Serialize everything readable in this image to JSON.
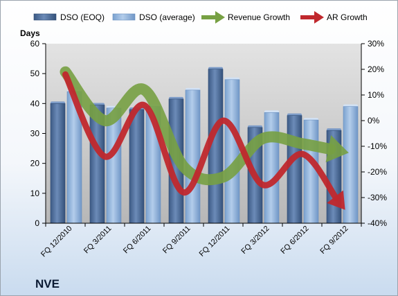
{
  "chart_data": {
    "type": "bar",
    "categories": [
      "FQ 12/2010",
      "FQ 3/2011",
      "FQ 6/2011",
      "FQ 9/2011",
      "FQ 12/2011",
      "FQ 3/2012",
      "FQ 6/2012",
      "FQ 9/2012"
    ],
    "series": [
      {
        "name": "DSO (EOQ)",
        "type": "bar",
        "axis": "left",
        "color": "#4f6f9c",
        "values": [
          40,
          39.5,
          38,
          41.5,
          51.5,
          32,
          36,
          31
        ]
      },
      {
        "name": "DSO (average)",
        "type": "bar",
        "axis": "left",
        "color": "#8fb2dc",
        "values": [
          44,
          38.5,
          39,
          44.5,
          48,
          37,
          34.5,
          39
        ]
      },
      {
        "name": "Revenue Growth",
        "type": "line-arrow",
        "axis": "right",
        "color": "#77a043",
        "values": [
          19,
          0,
          12,
          -18,
          -22,
          -7,
          -9,
          -12
        ]
      },
      {
        "name": "AR Growth",
        "type": "line-arrow",
        "axis": "right",
        "color": "#c0282d",
        "values": [
          18,
          -14,
          6,
          -28,
          0,
          -25,
          -13,
          -33
        ]
      }
    ],
    "y_left": {
      "label": "Days",
      "min": 0,
      "max": 60,
      "ticks": [
        "0",
        "10",
        "20",
        "30",
        "40",
        "50",
        "60"
      ]
    },
    "y_right": {
      "min": -40,
      "max": 30,
      "ticks": [
        "-40%",
        "-30%",
        "-20%",
        "-10%",
        "0%",
        "10%",
        "20%",
        "30%"
      ]
    },
    "grid": false,
    "legend_position": "top",
    "company": "NVE"
  }
}
